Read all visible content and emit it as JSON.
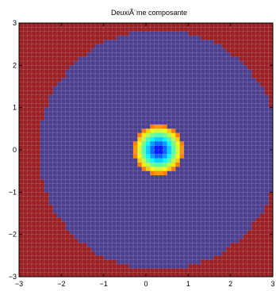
{
  "chart_data": {
    "type": "heatmap",
    "title": "DeuxiÃ¨me composante",
    "xlabel": "",
    "ylabel": "",
    "xlim": [
      -3,
      3
    ],
    "ylim": [
      -3,
      3
    ],
    "x_ticks": [
      -3,
      -2,
      -1,
      0,
      1,
      2,
      3
    ],
    "y_ticks": [
      -3,
      -2,
      -1,
      0,
      1,
      2,
      3
    ],
    "x_tick_labels": [
      "−3",
      "−2",
      "−1",
      "0",
      "1",
      "2",
      "3"
    ],
    "y_tick_labels": [
      "−3",
      "−2",
      "−1",
      "0",
      "1",
      "2",
      "3"
    ],
    "grid_lines": true,
    "grid_line_color": "#b8b8e0",
    "colormap": "jet",
    "colors": {
      "background_high": "#9a1c1c",
      "plateau": "#4a3c8c",
      "center_low": "#0000a0"
    },
    "surface": {
      "center": [
        0.3,
        0.0
      ],
      "well_radius": 0.6,
      "plateau_radius": 2.85
    }
  }
}
